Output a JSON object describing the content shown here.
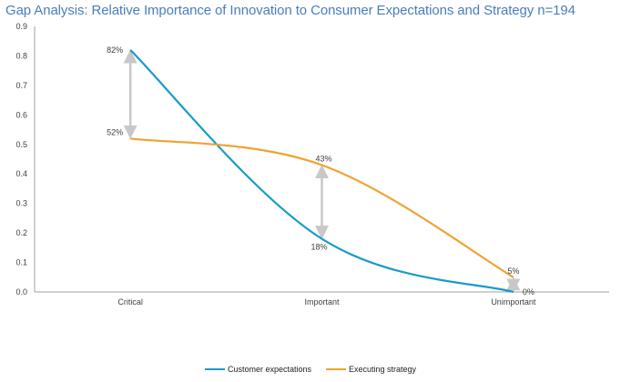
{
  "chart_data": {
    "type": "line",
    "title": "Gap Analysis: Relative Importance of Innovation to Consumer Expectations and Strategy n=194",
    "categories": [
      "Critical",
      "Important",
      "Unimportant"
    ],
    "series": [
      {
        "name": "Customer expectations",
        "color": "#1a9bc9",
        "values": [
          0.82,
          0.18,
          0.0
        ],
        "labels": [
          "82%",
          "18%",
          "0%"
        ]
      },
      {
        "name": "Executing strategy",
        "color": "#f0a22e",
        "values": [
          0.52,
          0.43,
          0.05
        ],
        "labels": [
          "52%",
          "43%",
          "5%"
        ]
      }
    ],
    "gap_arrows": true,
    "gap_arrow_color": "#c8c8c8",
    "xlabel": "",
    "ylabel": "",
    "ylim": [
      0,
      0.9
    ],
    "yticks": [
      "0.0",
      "0.1",
      "0.2",
      "0.3",
      "0.4",
      "0.5",
      "0.6",
      "0.7",
      "0.8",
      "0.9"
    ],
    "smooth": true,
    "grid": false,
    "legend_position": "bottom"
  }
}
